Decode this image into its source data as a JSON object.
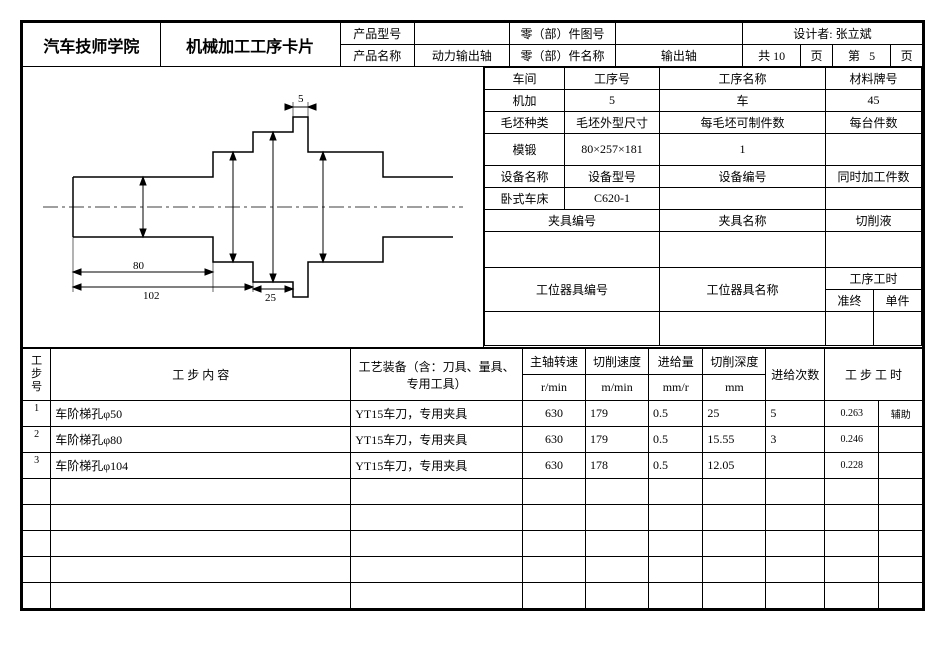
{
  "header": {
    "school": "汽车技师学院",
    "doc_title": "机械加工工序卡片",
    "product_model_label": "产品型号",
    "product_model": "",
    "part_drawing_label": "零（部）件图号",
    "part_drawing": "",
    "designer_label": "设计者:",
    "designer": "张立斌",
    "product_name_label": "产品名称",
    "product_name": "动力输出轴",
    "part_name_label": "零（部）件名称",
    "part_name": "输出轴",
    "total_pages_prefix": "共",
    "total_pages": "10",
    "total_pages_suffix": "页",
    "page_no_prefix": "第",
    "page_no": "5",
    "page_no_suffix": "页"
  },
  "info": {
    "workshop_label": "车间",
    "process_no_label": "工序号",
    "process_name_label": "工序名称",
    "material_label": "材料牌号",
    "workshop": "机加",
    "process_no": "5",
    "process_name": "车",
    "material": "45",
    "blank_type_label": "毛坯种类",
    "blank_dim_label": "毛坯外型尺寸",
    "per_blank_parts_label": "每毛坯可制件数",
    "per_unit_parts_label": "每台件数",
    "blank_type": "模锻",
    "blank_dim": "80×257×181",
    "per_blank_parts": "1",
    "per_unit_parts": "",
    "equip_name_label": "设备名称",
    "equip_model_label": "设备型号",
    "equip_no_label": "设备编号",
    "simul_parts_label": "同时加工件数",
    "equip_name": "卧式车床",
    "equip_model": "C620-1",
    "equip_no": "",
    "simul_parts": "",
    "fixture_no_label": "夹具编号",
    "fixture_name_label": "夹具名称",
    "coolant_label": "切削液",
    "fixture_no": "",
    "fixture_name": "",
    "coolant": "",
    "station_no_label": "工位器具编号",
    "station_name_label": "工位器具名称",
    "process_time_label": "工序工时",
    "prep_label": "准终",
    "unit_label": "单件"
  },
  "steps": {
    "header": {
      "no": "工步号",
      "content": "工    步    内    容",
      "equip": "工艺装备（含：刀具、量具、专用工具）",
      "spindle": "主轴转速",
      "spindle_unit": "r/min",
      "speed": "切削速度",
      "speed_unit": "m/min",
      "feed": "进给量",
      "feed_unit": "mm/r",
      "depth": "切削深度",
      "depth_unit": "mm",
      "passes": "进给次数",
      "time": "工 步 工 时",
      "aux": "辅助"
    },
    "rows": [
      {
        "no": "1",
        "content": "车阶梯孔φ50",
        "equip": "YT15车刀，专用夹具",
        "spindle": "630",
        "speed": "179",
        "feed": "0.5",
        "depth": "25",
        "passes": "5",
        "t1": "0.263",
        "t2": "辅助"
      },
      {
        "no": "2",
        "content": "车阶梯孔φ80",
        "equip": "YT15车刀，专用夹具",
        "spindle": "630",
        "speed": "179",
        "feed": "0.5",
        "depth": "15.55",
        "passes": "3",
        "t1": "0.246",
        "t2": ""
      },
      {
        "no": "3",
        "content": "车阶梯孔φ104",
        "equip": "YT15车刀，专用夹具",
        "spindle": "630",
        "speed": "178",
        "feed": "0.5",
        "depth": "12.05",
        "passes": "",
        "t1": "0.228",
        "t2": ""
      }
    ]
  },
  "drawing": {
    "dim_80": "80",
    "dim_102": "102",
    "dim_25": "25",
    "dim_5": "5"
  }
}
